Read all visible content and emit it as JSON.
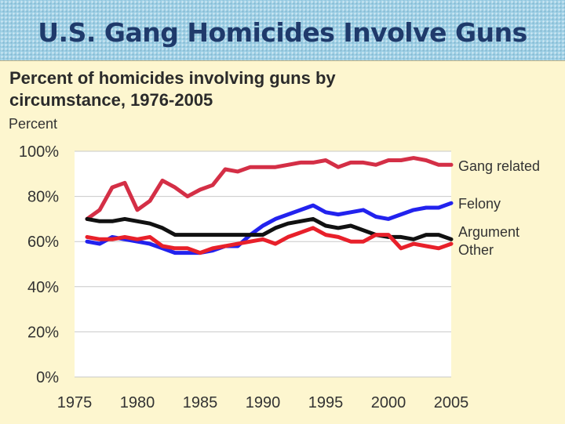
{
  "slide": {
    "title": "U.S. Gang Homicides Involve Guns"
  },
  "chart_data": {
    "type": "line",
    "title": "Percent of homicides involving guns by circumstance, 1976-2005",
    "title_lines": [
      "Percent of homicides involving guns by",
      "circumstance, 1976-2005"
    ],
    "ylabel": "Percent",
    "xlim": [
      1975,
      2005
    ],
    "ylim": [
      0,
      100
    ],
    "x_ticks": [
      1975,
      1980,
      1985,
      1990,
      1995,
      2000,
      2005
    ],
    "y_ticks": [
      0,
      20,
      40,
      60,
      80,
      100
    ],
    "y_tick_labels": [
      "0%",
      "20%",
      "40%",
      "60%",
      "80%",
      "100%"
    ],
    "grid": "horizontal",
    "legend_placement": "right end labels",
    "x": [
      1976,
      1977,
      1978,
      1979,
      1980,
      1981,
      1982,
      1983,
      1984,
      1985,
      1986,
      1987,
      1988,
      1989,
      1990,
      1991,
      1992,
      1993,
      1994,
      1995,
      1996,
      1997,
      1998,
      1999,
      2000,
      2001,
      2002,
      2003,
      2004,
      2005
    ],
    "series": [
      {
        "name": "Gang related",
        "color": "#d42f46",
        "values": [
          70,
          74,
          84,
          86,
          74,
          78,
          87,
          84,
          80,
          83,
          85,
          92,
          91,
          93,
          93,
          93,
          94,
          95,
          95,
          96,
          93,
          95,
          95,
          94,
          96,
          96,
          97,
          96,
          94,
          94
        ]
      },
      {
        "name": "Felony",
        "color": "#2222ee",
        "values": [
          60,
          59,
          62,
          61,
          60,
          59,
          57,
          55,
          55,
          55,
          56,
          58,
          58,
          63,
          67,
          70,
          72,
          74,
          76,
          73,
          72,
          73,
          74,
          71,
          70,
          72,
          74,
          75,
          75,
          77
        ]
      },
      {
        "name": "Argument",
        "color": "#111111",
        "values": [
          70,
          69,
          69,
          70,
          69,
          68,
          66,
          63,
          63,
          63,
          63,
          63,
          63,
          63,
          63,
          66,
          68,
          69,
          70,
          67,
          66,
          67,
          65,
          63,
          62,
          62,
          61,
          63,
          63,
          61
        ]
      },
      {
        "name": "Other",
        "color": "#e8202a",
        "values": [
          62,
          61,
          61,
          62,
          61,
          62,
          58,
          57,
          57,
          55,
          57,
          58,
          59,
          60,
          61,
          59,
          62,
          64,
          66,
          63,
          62,
          60,
          60,
          63,
          63,
          57,
          59,
          58,
          57,
          59
        ]
      }
    ]
  }
}
